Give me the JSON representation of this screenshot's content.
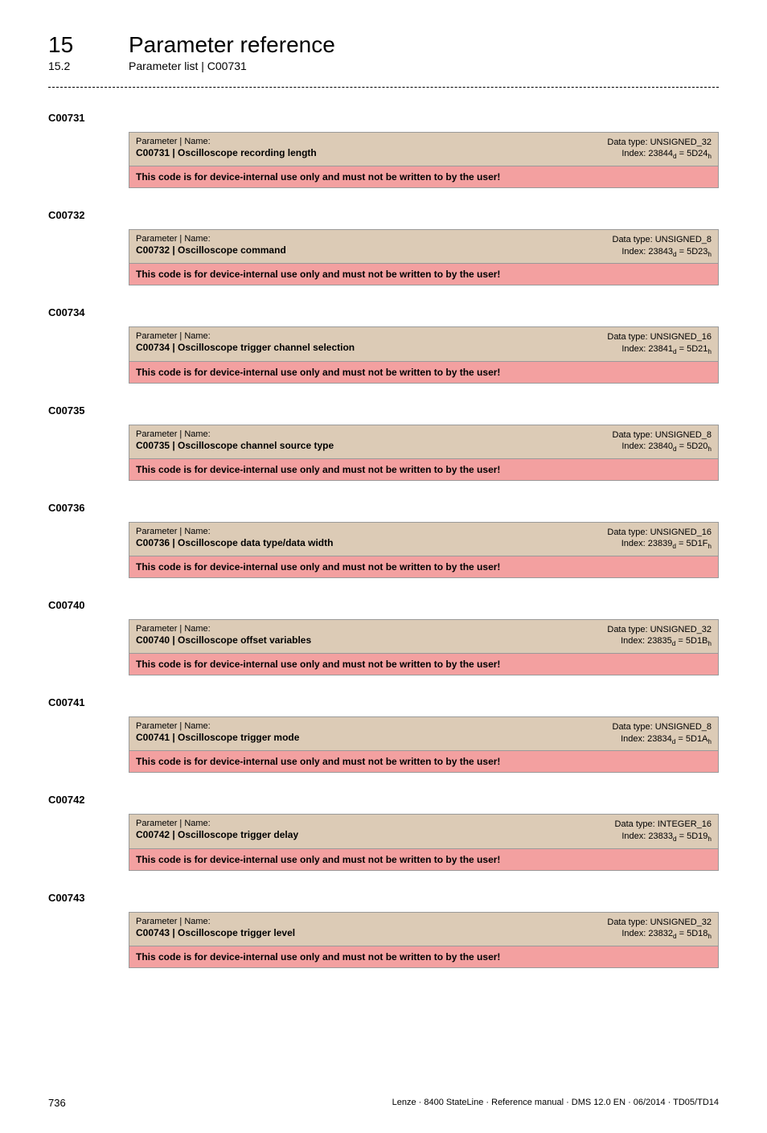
{
  "header": {
    "chapter_number": "15",
    "chapter_title": "Parameter reference",
    "sub_number": "15.2",
    "sub_title": "Parameter list | C00731"
  },
  "colors": {
    "header_bg": "#dccbb6",
    "body_bg": "#f3a0a0",
    "border": "#9a9a9a",
    "text": "#000000",
    "page_bg": "#ffffff"
  },
  "typography": {
    "chapter_fontsize": 28,
    "section_fontsize": 13,
    "param_head_fontsize": 11,
    "param_name_fontsize": 12,
    "body_fontsize": 12
  },
  "params": [
    {
      "code": "C00731",
      "name_label": "Parameter | Name:",
      "name": "C00731 | Oscilloscope recording length",
      "datatype": "Data type: UNSIGNED_32",
      "index_prefix": "Index: 23844",
      "index_sub1": "d",
      "index_eq": " = 5D24",
      "index_sub2": "h",
      "body": "This code is for device-internal use only and must not be written to by the user!"
    },
    {
      "code": "C00732",
      "name_label": "Parameter | Name:",
      "name": "C00732 | Oscilloscope command",
      "datatype": "Data type: UNSIGNED_8",
      "index_prefix": "Index: 23843",
      "index_sub1": "d",
      "index_eq": " = 5D23",
      "index_sub2": "h",
      "body": "This code is for device-internal use only and must not be written to by the user!"
    },
    {
      "code": "C00734",
      "name_label": "Parameter | Name:",
      "name": "C00734 | Oscilloscope trigger channel selection",
      "datatype": "Data type: UNSIGNED_16",
      "index_prefix": "Index: 23841",
      "index_sub1": "d",
      "index_eq": " = 5D21",
      "index_sub2": "h",
      "body": "This code is for device-internal use only and must not be written to by the user!"
    },
    {
      "code": "C00735",
      "name_label": "Parameter | Name:",
      "name": "C00735 | Oscilloscope channel source type",
      "datatype": "Data type: UNSIGNED_8",
      "index_prefix": "Index: 23840",
      "index_sub1": "d",
      "index_eq": " = 5D20",
      "index_sub2": "h",
      "body": "This code is for device-internal use only and must not be written to by the user!"
    },
    {
      "code": "C00736",
      "name_label": "Parameter | Name:",
      "name": "C00736 | Oscilloscope data type/data width",
      "datatype": "Data type: UNSIGNED_16",
      "index_prefix": "Index: 23839",
      "index_sub1": "d",
      "index_eq": " = 5D1F",
      "index_sub2": "h",
      "body": "This code is for device-internal use only and must not be written to by the user!"
    },
    {
      "code": "C00740",
      "name_label": "Parameter | Name:",
      "name": "C00740 | Oscilloscope offset variables",
      "datatype": "Data type: UNSIGNED_32",
      "index_prefix": "Index: 23835",
      "index_sub1": "d",
      "index_eq": " = 5D1B",
      "index_sub2": "h",
      "body": "This code is for device-internal use only and must not be written to by the user!"
    },
    {
      "code": "C00741",
      "name_label": "Parameter | Name:",
      "name": "C00741 | Oscilloscope trigger mode",
      "datatype": "Data type: UNSIGNED_8",
      "index_prefix": "Index: 23834",
      "index_sub1": "d",
      "index_eq": " = 5D1A",
      "index_sub2": "h",
      "body": "This code is for device-internal use only and must not be written to by the user!"
    },
    {
      "code": "C00742",
      "name_label": "Parameter | Name:",
      "name": "C00742 | Oscilloscope trigger delay",
      "datatype": "Data type: INTEGER_16",
      "index_prefix": "Index: 23833",
      "index_sub1": "d",
      "index_eq": " = 5D19",
      "index_sub2": "h",
      "body": "This code is for device-internal use only and must not be written to by the user!"
    },
    {
      "code": "C00743",
      "name_label": "Parameter | Name:",
      "name": "C00743 | Oscilloscope trigger level",
      "datatype": "Data type: UNSIGNED_32",
      "index_prefix": "Index: 23832",
      "index_sub1": "d",
      "index_eq": " = 5D18",
      "index_sub2": "h",
      "body": "This code is for device-internal use only and must not be written to by the user!"
    }
  ],
  "footer": {
    "page": "736",
    "doc_ref": "Lenze · 8400 StateLine · Reference manual · DMS 12.0 EN · 06/2014 · TD05/TD14"
  }
}
